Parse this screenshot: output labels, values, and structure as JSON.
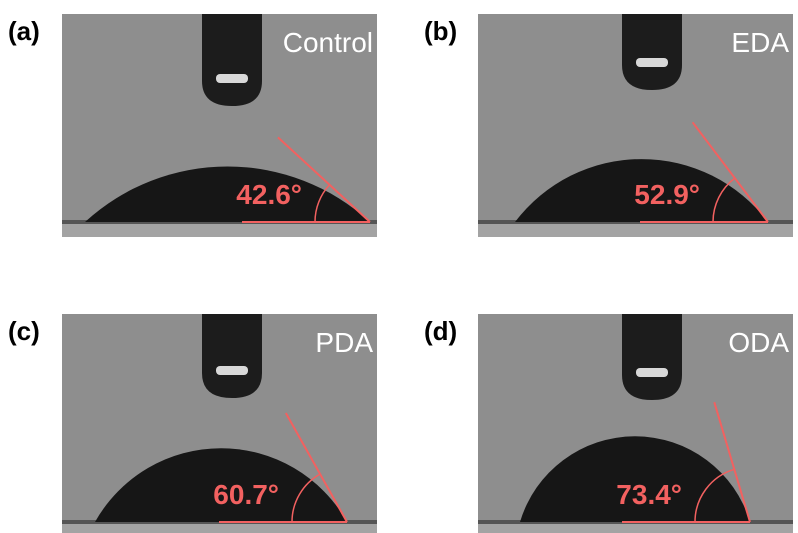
{
  "panels": [
    {
      "label": "(a)",
      "sample": "Control",
      "contact_angle": {
        "value": 42.6,
        "label": "42.6°"
      }
    },
    {
      "label": "(b)",
      "sample": "EDA",
      "contact_angle": {
        "value": 52.9,
        "label": "52.9°"
      }
    },
    {
      "label": "(c)",
      "sample": "PDA",
      "contact_angle": {
        "value": 60.7,
        "label": "60.7°"
      }
    },
    {
      "label": "(d)",
      "sample": "ODA",
      "contact_angle": {
        "value": 73.4,
        "label": "73.4°"
      }
    }
  ]
}
